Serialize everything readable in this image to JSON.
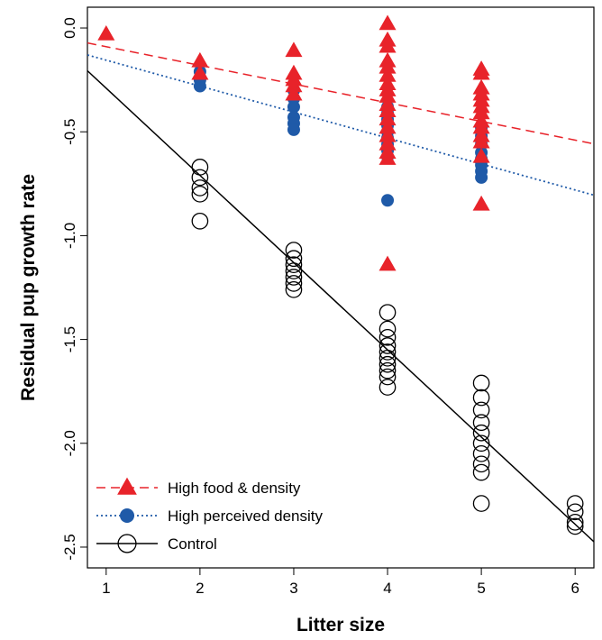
{
  "chart_data": {
    "type": "scatter",
    "title": "",
    "xlabel": "Litter size",
    "ylabel": "Residual pup growth rate",
    "xlim": [
      0.8,
      6.2
    ],
    "ylim": [
      -2.6,
      0.1
    ],
    "x_ticks": [
      1,
      2,
      3,
      4,
      5,
      6
    ],
    "x_tick_labels": [
      "1",
      "2",
      "3",
      "4",
      "5",
      "6"
    ],
    "y_ticks": [
      0.0,
      -0.5,
      -1.0,
      -1.5,
      -2.0,
      -2.5
    ],
    "y_tick_labels": [
      "0.0",
      "-0.5",
      "-1.0",
      "-1.5",
      "-2.0",
      "-2.5"
    ],
    "grid": false,
    "legend_position": "bottom-left",
    "series": [
      {
        "name": "High food & density",
        "marker": "filled-triangle",
        "line_style": "dashed",
        "color": "#e8232a",
        "fit": {
          "intercept": 0.0,
          "slope": -0.09
        },
        "points": [
          [
            1,
            -0.03
          ],
          [
            2,
            -0.16
          ],
          [
            2,
            -0.22
          ],
          [
            3,
            -0.11
          ],
          [
            3,
            -0.22
          ],
          [
            3,
            -0.25
          ],
          [
            3,
            -0.28
          ],
          [
            3,
            -0.32
          ],
          [
            4,
            0.02
          ],
          [
            4,
            -0.06
          ],
          [
            4,
            -0.09
          ],
          [
            4,
            -0.16
          ],
          [
            4,
            -0.19
          ],
          [
            4,
            -0.23
          ],
          [
            4,
            -0.27
          ],
          [
            4,
            -0.3
          ],
          [
            4,
            -0.33
          ],
          [
            4,
            -0.37
          ],
          [
            4,
            -0.4
          ],
          [
            4,
            -0.44
          ],
          [
            4,
            -0.48
          ],
          [
            4,
            -0.52
          ],
          [
            4,
            -0.56
          ],
          [
            4,
            -0.6
          ],
          [
            4,
            -0.63
          ],
          [
            4,
            -1.14
          ],
          [
            5,
            -0.2
          ],
          [
            5,
            -0.22
          ],
          [
            5,
            -0.29
          ],
          [
            5,
            -0.32
          ],
          [
            5,
            -0.35
          ],
          [
            5,
            -0.38
          ],
          [
            5,
            -0.41
          ],
          [
            5,
            -0.45
          ],
          [
            5,
            -0.48
          ],
          [
            5,
            -0.52
          ],
          [
            5,
            -0.55
          ],
          [
            5,
            -0.62
          ],
          [
            5,
            -0.85
          ]
        ]
      },
      {
        "name": "High perceived density",
        "marker": "filled-circle",
        "line_style": "dotted",
        "color": "#1f5aa8",
        "fit": {
          "intercept": -0.03,
          "slope": -0.125
        },
        "points": [
          [
            2,
            -0.21
          ],
          [
            2,
            -0.25
          ],
          [
            2,
            -0.28
          ],
          [
            3,
            -0.3
          ],
          [
            3,
            -0.34
          ],
          [
            3,
            -0.38
          ],
          [
            3,
            -0.43
          ],
          [
            3,
            -0.46
          ],
          [
            3,
            -0.49
          ],
          [
            4,
            -0.38
          ],
          [
            4,
            -0.41
          ],
          [
            4,
            -0.44
          ],
          [
            4,
            -0.47
          ],
          [
            4,
            -0.5
          ],
          [
            4,
            -0.53
          ],
          [
            4,
            -0.56
          ],
          [
            4,
            -0.59
          ],
          [
            4,
            -0.62
          ],
          [
            4,
            -0.83
          ],
          [
            5,
            -0.48
          ],
          [
            5,
            -0.52
          ],
          [
            5,
            -0.56
          ],
          [
            5,
            -0.6
          ],
          [
            5,
            -0.63
          ],
          [
            5,
            -0.66
          ],
          [
            5,
            -0.69
          ],
          [
            5,
            -0.72
          ]
        ]
      },
      {
        "name": "Control",
        "marker": "open-circle",
        "line_style": "solid",
        "color": "#000000",
        "fit": {
          "intercept": 0.13,
          "slope": -0.42
        },
        "points": [
          [
            2,
            -0.67
          ],
          [
            2,
            -0.72
          ],
          [
            2,
            -0.77
          ],
          [
            2,
            -0.8
          ],
          [
            2,
            -0.93
          ],
          [
            3,
            -1.07
          ],
          [
            3,
            -1.11
          ],
          [
            3,
            -1.14
          ],
          [
            3,
            -1.17
          ],
          [
            3,
            -1.2
          ],
          [
            3,
            -1.23
          ],
          [
            3,
            -1.26
          ],
          [
            4,
            -1.37
          ],
          [
            4,
            -1.45
          ],
          [
            4,
            -1.49
          ],
          [
            4,
            -1.53
          ],
          [
            4,
            -1.56
          ],
          [
            4,
            -1.59
          ],
          [
            4,
            -1.62
          ],
          [
            4,
            -1.65
          ],
          [
            4,
            -1.68
          ],
          [
            4,
            -1.73
          ],
          [
            5,
            -1.71
          ],
          [
            5,
            -1.78
          ],
          [
            5,
            -1.84
          ],
          [
            5,
            -1.9
          ],
          [
            5,
            -1.95
          ],
          [
            5,
            -2.0
          ],
          [
            5,
            -2.05
          ],
          [
            5,
            -2.1
          ],
          [
            5,
            -2.14
          ],
          [
            5,
            -2.29
          ],
          [
            6,
            -2.29
          ],
          [
            6,
            -2.33
          ],
          [
            6,
            -2.38
          ],
          [
            6,
            -2.4
          ]
        ]
      }
    ]
  }
}
